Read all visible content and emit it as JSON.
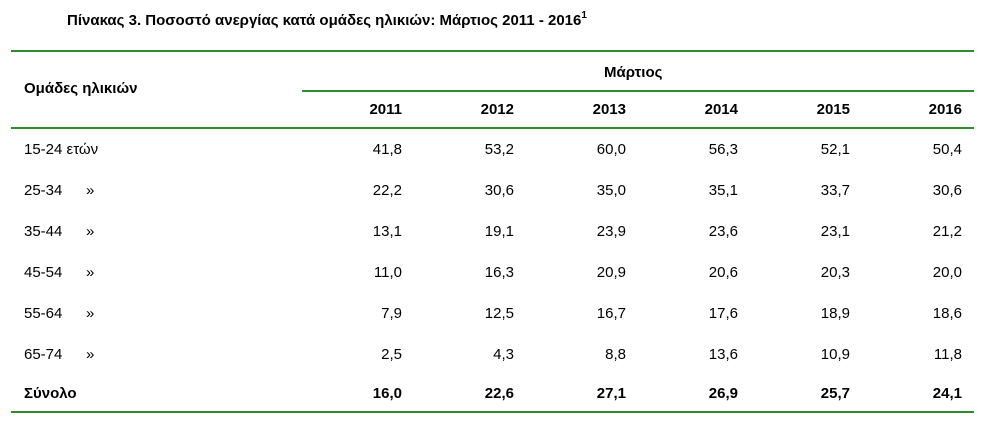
{
  "title": "Πίνακας 3. Ποσοστό ανεργίας κατά ομάδες ηλικιών: Μάρτιος 2011 - 2016",
  "title_sup": "1",
  "header": {
    "group_label": "Ομάδες ηλικιών",
    "month_label": "Μάρτιος",
    "years": [
      "2011",
      "2012",
      "2013",
      "2014",
      "2015",
      "2016"
    ]
  },
  "rows": [
    {
      "label": "15-24 ετών",
      "ditto": "",
      "values": [
        "41,8",
        "53,2",
        "60,0",
        "56,3",
        "52,1",
        "50,4"
      ]
    },
    {
      "label": "25-34",
      "ditto": "»",
      "values": [
        "22,2",
        "30,6",
        "35,0",
        "35,1",
        "33,7",
        "30,6"
      ]
    },
    {
      "label": "35-44",
      "ditto": "»",
      "values": [
        "13,1",
        "19,1",
        "23,9",
        "23,6",
        "23,1",
        "21,2"
      ]
    },
    {
      "label": "45-54",
      "ditto": "»",
      "values": [
        "11,0",
        "16,3",
        "20,9",
        "20,6",
        "20,3",
        "20,0"
      ]
    },
    {
      "label": "55-64",
      "ditto": "»",
      "values": [
        "7,9",
        "12,5",
        "16,7",
        "17,6",
        "18,9",
        "18,6"
      ]
    },
    {
      "label": "65-74",
      "ditto": "»",
      "values": [
        "2,5",
        "4,3",
        "8,8",
        "13,6",
        "10,9",
        "11,8"
      ]
    }
  ],
  "total": {
    "label": "Σύνολο",
    "values": [
      "16,0",
      "22,6",
      "27,1",
      "26,9",
      "25,7",
      "24,1"
    ]
  },
  "colors": {
    "rule": "#2e8b2e"
  }
}
